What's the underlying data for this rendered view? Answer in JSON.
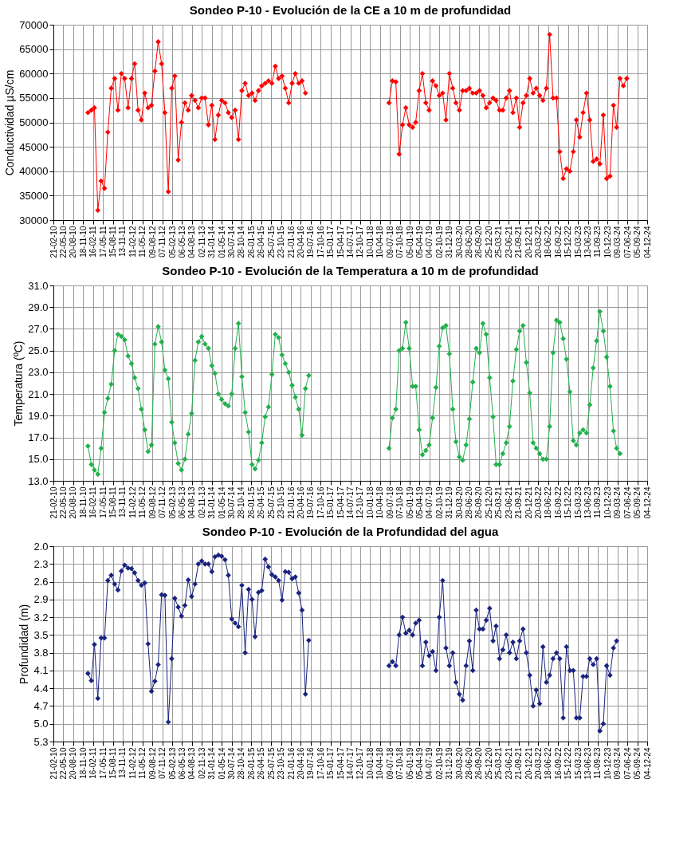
{
  "chart_data": [
    {
      "type": "line",
      "title": "Sondeo P-10 - Evolución de la CE a 10 m de profundidad",
      "ylabel": "Conductividad µS/cm",
      "marker": "diamond",
      "line_style": "solid",
      "grid": true,
      "xlim": [
        "2010-02-21",
        "2024-12-04"
      ],
      "xticks": [
        {
          "value": "2010-02-21",
          "label": "21-02-10"
        },
        {
          "value": "2010-05-22",
          "label": "22-05-10"
        },
        {
          "value": "2010-08-20",
          "label": "20-08-10"
        },
        {
          "value": "2010-11-18",
          "label": "18-11-10"
        },
        {
          "value": "2011-02-16",
          "label": "16-02-11"
        },
        {
          "value": "2011-05-17",
          "label": "17-05-11"
        },
        {
          "value": "2011-08-15",
          "label": "15-08-11"
        },
        {
          "value": "2011-11-13",
          "label": "13-11-11"
        },
        {
          "value": "2012-02-11",
          "label": "11-02-12"
        },
        {
          "value": "2012-05-11",
          "label": "11-05-12"
        },
        {
          "value": "2012-08-09",
          "label": "09-08-12"
        },
        {
          "value": "2012-11-07",
          "label": "07-11-12"
        },
        {
          "value": "2013-02-05",
          "label": "05-02-13"
        },
        {
          "value": "2013-05-06",
          "label": "06-05-13"
        },
        {
          "value": "2013-08-04",
          "label": "04-08-13"
        },
        {
          "value": "2013-11-02",
          "label": "02-11-13"
        },
        {
          "value": "2014-01-31",
          "label": "31-01-14"
        },
        {
          "value": "2014-05-01",
          "label": "01-05-14"
        },
        {
          "value": "2014-07-30",
          "label": "30-07-14"
        },
        {
          "value": "2014-10-28",
          "label": "28-10-14"
        },
        {
          "value": "2015-01-26",
          "label": "26-01-15"
        },
        {
          "value": "2015-04-26",
          "label": "26-04-15"
        },
        {
          "value": "2015-07-25",
          "label": "25-07-15"
        },
        {
          "value": "2015-10-23",
          "label": "23-10-15"
        },
        {
          "value": "2016-01-21",
          "label": "21-01-16"
        },
        {
          "value": "2016-04-20",
          "label": "20-04-16"
        },
        {
          "value": "2016-07-19",
          "label": "19-07-16"
        },
        {
          "value": "2016-10-17",
          "label": "17-10-16"
        },
        {
          "value": "2017-01-15",
          "label": "15-01-17"
        },
        {
          "value": "2017-04-15",
          "label": "15-04-17"
        },
        {
          "value": "2017-07-14",
          "label": "14-07-17"
        },
        {
          "value": "2017-10-12",
          "label": "12-10-17"
        },
        {
          "value": "2018-01-10",
          "label": "10-01-18"
        },
        {
          "value": "2018-04-10",
          "label": "10-04-18"
        },
        {
          "value": "2018-07-09",
          "label": "09-07-18"
        },
        {
          "value": "2018-10-07",
          "label": "07-10-18"
        },
        {
          "value": "2019-01-05",
          "label": "05-01-19"
        },
        {
          "value": "2019-04-05",
          "label": "05-04-19"
        },
        {
          "value": "2019-07-04",
          "label": "04-07-19"
        },
        {
          "value": "2019-10-02",
          "label": "02-10-19"
        },
        {
          "value": "2019-12-31",
          "label": "31-12-19"
        },
        {
          "value": "2020-03-30",
          "label": "30-03-20"
        },
        {
          "value": "2020-06-28",
          "label": "28-06-20"
        },
        {
          "value": "2020-09-26",
          "label": "26-09-20"
        },
        {
          "value": "2020-12-25",
          "label": "25-12-20"
        },
        {
          "value": "2021-03-25",
          "label": "25-03-21"
        },
        {
          "value": "2021-06-23",
          "label": "23-06-21"
        },
        {
          "value": "2021-09-21",
          "label": "21-09-21"
        },
        {
          "value": "2021-12-20",
          "label": "20-12-21"
        },
        {
          "value": "2022-03-20",
          "label": "20-03-22"
        },
        {
          "value": "2022-06-18",
          "label": "18-06-22"
        },
        {
          "value": "2022-09-16",
          "label": "16-09-22"
        },
        {
          "value": "2022-12-15",
          "label": "15-12-22"
        },
        {
          "value": "2023-03-15",
          "label": "15-03-23"
        },
        {
          "value": "2023-06-13",
          "label": "13-06-23"
        },
        {
          "value": "2023-09-11",
          "label": "11-09-23"
        },
        {
          "value": "2023-12-10",
          "label": "10-12-23"
        },
        {
          "value": "2024-03-09",
          "label": "09-03-24"
        },
        {
          "value": "2024-06-07",
          "label": "07-06-24"
        },
        {
          "value": "2024-09-05",
          "label": "05-09-24"
        },
        {
          "value": "2024-12-04",
          "label": "04-12-24"
        }
      ],
      "ylim": [
        30000,
        70000
      ],
      "yticks": [
        30000,
        35000,
        40000,
        45000,
        50000,
        55000,
        60000,
        65000,
        70000
      ],
      "series": [
        {
          "color": "#ff0000",
          "x": [
            "2011-01",
            "2011-02",
            "2011-03",
            "2011-04",
            "2011-05",
            "2011-06",
            "2011-07",
            "2011-08",
            "2011-09",
            "2011-10",
            "2011-11",
            "2011-12",
            "2012-01",
            "2012-02",
            "2012-03",
            "2012-04",
            "2012-05",
            "2012-06",
            "2012-07",
            "2012-08",
            "2012-09",
            "2012-10",
            "2012-11",
            "2012-12",
            "2013-01",
            "2013-02",
            "2013-03",
            "2013-04",
            "2013-05",
            "2013-06",
            "2013-07",
            "2013-08",
            "2013-09",
            "2013-10",
            "2013-11",
            "2013-12",
            "2014-01",
            "2014-02",
            "2014-03",
            "2014-04",
            "2014-05",
            "2014-06",
            "2014-07",
            "2014-08",
            "2014-09",
            "2014-10",
            "2014-11",
            "2014-12",
            "2015-01",
            "2015-02",
            "2015-03",
            "2015-04",
            "2015-05",
            "2015-06",
            "2015-07",
            "2015-08",
            "2015-09",
            "2015-10",
            "2015-11",
            "2015-12",
            "2016-01",
            "2016-02",
            "2016-03",
            "2016-04",
            "2016-05",
            "2016-06"
          ],
          "values": [
            52000,
            52500,
            53000,
            32000,
            38000,
            36500,
            48000,
            57000,
            59000,
            52500,
            60000,
            59000,
            53000,
            59000,
            62000,
            52500,
            50500,
            56000,
            53000,
            53500,
            60500,
            66500,
            62000,
            52000,
            35800,
            57000,
            59500,
            42300,
            50000,
            54000,
            52500,
            55500,
            54500,
            53000,
            55000,
            55000,
            49500,
            53500,
            46500,
            51500,
            54500,
            54000,
            52000,
            51000,
            52500,
            46500,
            56500,
            58000,
            55500,
            56000,
            54500,
            56500,
            57500,
            58000,
            58500,
            58000,
            61500,
            59000,
            59500,
            57000,
            54000,
            58000,
            60000,
            58000,
            58500,
            56000
          ]
        },
        {
          "color": "#ff0000",
          "x": [
            "2018-07",
            "2018-08",
            "2018-09",
            "2018-10",
            "2018-11",
            "2018-12",
            "2019-01",
            "2019-02",
            "2019-03",
            "2019-04",
            "2019-05",
            "2019-06",
            "2019-07",
            "2019-08",
            "2019-09",
            "2019-10",
            "2019-11",
            "2019-12",
            "2020-01",
            "2020-02",
            "2020-03",
            "2020-04",
            "2020-05",
            "2020-06",
            "2020-07",
            "2020-08",
            "2020-09",
            "2020-10",
            "2020-11",
            "2020-12",
            "2021-01",
            "2021-02",
            "2021-03",
            "2021-04",
            "2021-05",
            "2021-06",
            "2021-07",
            "2021-08",
            "2021-09",
            "2021-10",
            "2021-11",
            "2021-12",
            "2022-01",
            "2022-02",
            "2022-03",
            "2022-04",
            "2022-05",
            "2022-06",
            "2022-07",
            "2022-08",
            "2022-09",
            "2022-10",
            "2022-11",
            "2022-12",
            "2023-01",
            "2023-02",
            "2023-03",
            "2023-04",
            "2023-05",
            "2023-06",
            "2023-07",
            "2023-08",
            "2023-09",
            "2023-10",
            "2023-11",
            "2023-12",
            "2024-01",
            "2024-02",
            "2024-03",
            "2024-04",
            "2024-05",
            "2024-06"
          ],
          "values": [
            54000,
            58500,
            58300,
            43500,
            49500,
            53000,
            49500,
            49000,
            50000,
            56500,
            60000,
            54000,
            52500,
            58500,
            57500,
            55500,
            56000,
            50500,
            60000,
            57000,
            54000,
            52500,
            56500,
            56500,
            57000,
            56000,
            56000,
            56500,
            55500,
            53000,
            54000,
            55000,
            54500,
            52500,
            52500,
            55000,
            56500,
            52000,
            55000,
            49000,
            54000,
            55500,
            59000,
            56000,
            57000,
            55500,
            54500,
            57000,
            68000,
            55000,
            55000,
            44000,
            38500,
            40500,
            40000,
            44000,
            50500,
            47000,
            52000,
            56000,
            50500,
            42000,
            42500,
            41500,
            51500,
            38500,
            39000,
            53500,
            49000,
            59000,
            57500,
            59000
          ]
        }
      ]
    },
    {
      "type": "line",
      "title": "Sondeo P-10 - Evolución de la Temperatura a 10 m de profundidad",
      "ylabel": "Temperatura (ºC)",
      "marker": "diamond",
      "line_style": "solid",
      "grid": true,
      "xlim": [
        "2010-02-21",
        "2024-12-04"
      ],
      "xticks": [
        {
          "value": "2010-02-21",
          "label": "21-02-10"
        },
        {
          "value": "2010-05-22",
          "label": "22-05-10"
        },
        {
          "value": "2010-08-20",
          "label": "20-08-10"
        },
        {
          "value": "2010-11-18",
          "label": "18-11-10"
        },
        {
          "value": "2011-02-16",
          "label": "16-02-11"
        },
        {
          "value": "2011-05-17",
          "label": "17-05-11"
        },
        {
          "value": "2011-08-15",
          "label": "15-08-11"
        },
        {
          "value": "2011-11-13",
          "label": "13-11-11"
        },
        {
          "value": "2012-02-11",
          "label": "11-02-12"
        },
        {
          "value": "2012-05-11",
          "label": "11-05-12"
        },
        {
          "value": "2012-08-09",
          "label": "09-08-12"
        },
        {
          "value": "2012-11-07",
          "label": "07-11-12"
        },
        {
          "value": "2013-02-05",
          "label": "05-02-13"
        },
        {
          "value": "2013-05-06",
          "label": "06-05-13"
        },
        {
          "value": "2013-08-04",
          "label": "04-08-13"
        },
        {
          "value": "2013-11-02",
          "label": "02-11-13"
        },
        {
          "value": "2014-01-31",
          "label": "31-01-14"
        },
        {
          "value": "2014-05-01",
          "label": "01-05-14"
        },
        {
          "value": "2014-07-30",
          "label": "30-07-14"
        },
        {
          "value": "2014-10-28",
          "label": "28-10-14"
        },
        {
          "value": "2015-01-26",
          "label": "26-01-15"
        },
        {
          "value": "2015-04-26",
          "label": "26-04-15"
        },
        {
          "value": "2015-07-25",
          "label": "25-07-15"
        },
        {
          "value": "2015-10-23",
          "label": "23-10-15"
        },
        {
          "value": "2016-01-21",
          "label": "21-01-16"
        },
        {
          "value": "2016-04-20",
          "label": "20-04-16"
        },
        {
          "value": "2016-07-19",
          "label": "19-07-16"
        },
        {
          "value": "2016-10-17",
          "label": "17-10-16"
        },
        {
          "value": "2017-01-15",
          "label": "15-01-17"
        },
        {
          "value": "2017-04-15",
          "label": "15-04-17"
        },
        {
          "value": "2017-07-14",
          "label": "14-07-17"
        },
        {
          "value": "2017-10-12",
          "label": "12-10-17"
        },
        {
          "value": "2018-01-10",
          "label": "10-01-18"
        },
        {
          "value": "2018-04-10",
          "label": "10-04-18"
        },
        {
          "value": "2018-07-09",
          "label": "09-07-18"
        },
        {
          "value": "2018-10-07",
          "label": "07-10-18"
        },
        {
          "value": "2019-01-05",
          "label": "05-01-19"
        },
        {
          "value": "2019-04-05",
          "label": "05-04-19"
        },
        {
          "value": "2019-07-04",
          "label": "04-07-19"
        },
        {
          "value": "2019-10-02",
          "label": "02-10-19"
        },
        {
          "value": "2019-12-31",
          "label": "31-12-19"
        },
        {
          "value": "2020-03-30",
          "label": "30-03-20"
        },
        {
          "value": "2020-06-28",
          "label": "28-06-20"
        },
        {
          "value": "2020-09-26",
          "label": "26-09-20"
        },
        {
          "value": "2020-12-25",
          "label": "25-12-20"
        },
        {
          "value": "2021-03-25",
          "label": "25-03-21"
        },
        {
          "value": "2021-06-23",
          "label": "23-06-21"
        },
        {
          "value": "2021-09-21",
          "label": "21-09-21"
        },
        {
          "value": "2021-12-20",
          "label": "20-12-21"
        },
        {
          "value": "2022-03-20",
          "label": "20-03-22"
        },
        {
          "value": "2022-06-18",
          "label": "18-06-22"
        },
        {
          "value": "2022-09-16",
          "label": "16-09-22"
        },
        {
          "value": "2022-12-15",
          "label": "15-12-22"
        },
        {
          "value": "2023-03-15",
          "label": "15-03-23"
        },
        {
          "value": "2023-06-13",
          "label": "13-06-23"
        },
        {
          "value": "2023-09-11",
          "label": "11-09-23"
        },
        {
          "value": "2023-12-10",
          "label": "10-12-23"
        },
        {
          "value": "2024-03-09",
          "label": "09-03-24"
        },
        {
          "value": "2024-06-07",
          "label": "07-06-24"
        },
        {
          "value": "2024-09-05",
          "label": "05-09-24"
        },
        {
          "value": "2024-12-04",
          "label": "04-12-24"
        }
      ],
      "ylim": [
        13,
        31
      ],
      "yticks": [
        {
          "value": 13,
          "label": "13.0"
        },
        {
          "value": 15,
          "label": "15.0"
        },
        {
          "value": 17,
          "label": "17.0"
        },
        {
          "value": 19,
          "label": "19.0"
        },
        {
          "value": 21,
          "label": "21.0"
        },
        {
          "value": 23,
          "label": "23.0"
        },
        {
          "value": 25,
          "label": "25.0"
        },
        {
          "value": 27,
          "label": "27.0"
        },
        {
          "value": 29,
          "label": "29.0"
        },
        {
          "value": 31,
          "label": "31.0"
        }
      ],
      "series": [
        {
          "color": "#22b14c",
          "x": [
            "2011-01",
            "2011-02",
            "2011-03",
            "2011-04",
            "2011-05",
            "2011-06",
            "2011-07",
            "2011-08",
            "2011-09",
            "2011-10",
            "2011-11",
            "2011-12",
            "2012-01",
            "2012-02",
            "2012-03",
            "2012-04",
            "2012-05",
            "2012-06",
            "2012-07",
            "2012-08",
            "2012-09",
            "2012-10",
            "2012-11",
            "2012-12",
            "2013-01",
            "2013-02",
            "2013-03",
            "2013-04",
            "2013-05",
            "2013-06",
            "2013-07",
            "2013-08",
            "2013-09",
            "2013-10",
            "2013-11",
            "2013-12",
            "2014-01",
            "2014-02",
            "2014-03",
            "2014-04",
            "2014-05",
            "2014-06",
            "2014-07",
            "2014-08",
            "2014-09",
            "2014-10",
            "2014-11",
            "2014-12",
            "2015-01",
            "2015-02",
            "2015-03",
            "2015-04",
            "2015-05",
            "2015-06",
            "2015-07",
            "2015-08",
            "2015-09",
            "2015-10",
            "2015-11",
            "2015-12",
            "2016-01",
            "2016-02",
            "2016-03",
            "2016-04",
            "2016-05",
            "2016-06",
            "2016-07"
          ],
          "values": [
            16.2,
            14.5,
            14.0,
            13.6,
            16.0,
            19.3,
            20.6,
            21.9,
            25.0,
            26.5,
            26.3,
            26.0,
            24.5,
            23.8,
            22.5,
            21.5,
            19.6,
            17.7,
            15.7,
            16.3,
            25.6,
            27.2,
            25.8,
            23.2,
            22.4,
            18.4,
            16.5,
            14.6,
            14.0,
            15.0,
            17.3,
            19.2,
            24.1,
            25.8,
            26.3,
            25.6,
            25.2,
            23.6,
            22.9,
            21.0,
            20.5,
            20.1,
            19.9,
            21.0,
            25.2,
            27.5,
            22.6,
            19.3,
            17.5,
            14.5,
            14.1,
            14.9,
            16.5,
            18.9,
            19.8,
            22.8,
            26.5,
            26.2,
            24.6,
            23.8,
            23.0,
            21.8,
            20.7,
            19.6,
            17.2,
            21.5,
            22.7
          ]
        },
        {
          "color": "#22b14c",
          "x": [
            "2018-07",
            "2018-08",
            "2018-09",
            "2018-10",
            "2018-11",
            "2018-12",
            "2019-01",
            "2019-02",
            "2019-03",
            "2019-04",
            "2019-05",
            "2019-06",
            "2019-07",
            "2019-08",
            "2019-09",
            "2019-10",
            "2019-11",
            "2019-12",
            "2020-01",
            "2020-02",
            "2020-03",
            "2020-04",
            "2020-05",
            "2020-06",
            "2020-07",
            "2020-08",
            "2020-09",
            "2020-10",
            "2020-11",
            "2020-12",
            "2021-01",
            "2021-02",
            "2021-03",
            "2021-04",
            "2021-05",
            "2021-06",
            "2021-07",
            "2021-08",
            "2021-09",
            "2021-10",
            "2021-11",
            "2021-12",
            "2022-01",
            "2022-02",
            "2022-03",
            "2022-04",
            "2022-05",
            "2022-06",
            "2022-07",
            "2022-08",
            "2022-09",
            "2022-10",
            "2022-11",
            "2022-12",
            "2023-01",
            "2023-02",
            "2023-03",
            "2023-04",
            "2023-05",
            "2023-06",
            "2023-07",
            "2023-08",
            "2023-09",
            "2023-10",
            "2023-11",
            "2023-12",
            "2024-01",
            "2024-02",
            "2024-03",
            "2024-04"
          ],
          "values": [
            16.0,
            18.8,
            19.6,
            25.0,
            25.2,
            27.6,
            25.2,
            21.7,
            21.7,
            17.7,
            15.4,
            15.8,
            16.3,
            18.8,
            21.6,
            25.4,
            27.1,
            27.3,
            24.7,
            19.6,
            16.6,
            15.2,
            14.9,
            16.3,
            18.7,
            22.1,
            25.2,
            24.8,
            27.5,
            26.5,
            22.5,
            18.9,
            14.5,
            14.5,
            15.5,
            16.5,
            18.0,
            22.2,
            25.1,
            26.8,
            27.3,
            23.9,
            21.1,
            16.5,
            16.0,
            15.5,
            15.0,
            15.0,
            18.0,
            24.8,
            27.8,
            27.6,
            26.1,
            24.2,
            21.2,
            16.7,
            16.3,
            17.4,
            17.7,
            17.4,
            20.0,
            23.4,
            25.9,
            28.6,
            26.8,
            24.4,
            21.7,
            17.6,
            16.0,
            15.5
          ]
        }
      ]
    },
    {
      "type": "line",
      "title": "Sondeo P-10 - Evolución de la Profundidad del agua",
      "ylabel": "Profundidad (m)",
      "marker": "diamond",
      "line_style": "solid",
      "grid": true,
      "xlim": [
        "2010-02-21",
        "2024-12-04"
      ],
      "xticks": [
        {
          "value": "2010-02-21",
          "label": "21-02-10"
        },
        {
          "value": "2010-05-22",
          "label": "22-05-10"
        },
        {
          "value": "2010-08-20",
          "label": "20-08-10"
        },
        {
          "value": "2010-11-18",
          "label": "18-11-10"
        },
        {
          "value": "2011-02-16",
          "label": "16-02-11"
        },
        {
          "value": "2011-05-17",
          "label": "17-05-11"
        },
        {
          "value": "2011-08-15",
          "label": "15-08-11"
        },
        {
          "value": "2011-11-13",
          "label": "13-11-11"
        },
        {
          "value": "2012-02-11",
          "label": "11-02-12"
        },
        {
          "value": "2012-05-11",
          "label": "11-05-12"
        },
        {
          "value": "2012-08-09",
          "label": "09-08-12"
        },
        {
          "value": "2012-11-07",
          "label": "07-11-12"
        },
        {
          "value": "2013-02-05",
          "label": "05-02-13"
        },
        {
          "value": "2013-05-06",
          "label": "06-05-13"
        },
        {
          "value": "2013-08-04",
          "label": "04-08-13"
        },
        {
          "value": "2013-11-02",
          "label": "02-11-13"
        },
        {
          "value": "2014-01-31",
          "label": "31-01-14"
        },
        {
          "value": "2014-05-01",
          "label": "01-05-14"
        },
        {
          "value": "2014-07-30",
          "label": "30-07-14"
        },
        {
          "value": "2014-10-28",
          "label": "28-10-14"
        },
        {
          "value": "2015-01-26",
          "label": "26-01-15"
        },
        {
          "value": "2015-04-26",
          "label": "26-04-15"
        },
        {
          "value": "2015-07-25",
          "label": "25-07-15"
        },
        {
          "value": "2015-10-23",
          "label": "23-10-15"
        },
        {
          "value": "2016-01-21",
          "label": "21-01-16"
        },
        {
          "value": "2016-04-20",
          "label": "20-04-16"
        },
        {
          "value": "2016-07-19",
          "label": "19-07-16"
        },
        {
          "value": "2016-10-17",
          "label": "17-10-16"
        },
        {
          "value": "2017-01-15",
          "label": "15-01-17"
        },
        {
          "value": "2017-04-15",
          "label": "15-04-17"
        },
        {
          "value": "2017-07-14",
          "label": "14-07-17"
        },
        {
          "value": "2017-10-12",
          "label": "12-10-17"
        },
        {
          "value": "2018-01-10",
          "label": "10-01-18"
        },
        {
          "value": "2018-04-10",
          "label": "10-04-18"
        },
        {
          "value": "2018-07-09",
          "label": "09-07-18"
        },
        {
          "value": "2018-10-07",
          "label": "07-10-18"
        },
        {
          "value": "2019-01-05",
          "label": "05-01-19"
        },
        {
          "value": "2019-04-05",
          "label": "05-04-19"
        },
        {
          "value": "2019-07-04",
          "label": "04-07-19"
        },
        {
          "value": "2019-10-02",
          "label": "02-10-19"
        },
        {
          "value": "2019-12-31",
          "label": "31-12-19"
        },
        {
          "value": "2020-03-30",
          "label": "30-03-20"
        },
        {
          "value": "2020-06-28",
          "label": "28-06-20"
        },
        {
          "value": "2020-09-26",
          "label": "26-09-20"
        },
        {
          "value": "2020-12-25",
          "label": "25-12-20"
        },
        {
          "value": "2021-03-25",
          "label": "25-03-21"
        },
        {
          "value": "2021-06-23",
          "label": "23-06-21"
        },
        {
          "value": "2021-09-21",
          "label": "21-09-21"
        },
        {
          "value": "2021-12-20",
          "label": "20-12-21"
        },
        {
          "value": "2022-03-20",
          "label": "20-03-22"
        },
        {
          "value": "2022-06-18",
          "label": "18-06-22"
        },
        {
          "value": "2022-09-16",
          "label": "16-09-22"
        },
        {
          "value": "2022-12-15",
          "label": "15-12-22"
        },
        {
          "value": "2023-03-15",
          "label": "15-03-23"
        },
        {
          "value": "2023-06-13",
          "label": "13-06-23"
        },
        {
          "value": "2023-09-11",
          "label": "11-09-23"
        },
        {
          "value": "2023-12-10",
          "label": "10-12-23"
        },
        {
          "value": "2024-03-09",
          "label": "09-03-24"
        },
        {
          "value": "2024-06-07",
          "label": "07-06-24"
        },
        {
          "value": "2024-09-05",
          "label": "05-09-24"
        },
        {
          "value": "2024-12-04",
          "label": "04-12-24"
        }
      ],
      "ylim": [
        5.3,
        2.0
      ],
      "yticks": [
        {
          "value": 2.0,
          "label": "2.0"
        },
        2.3,
        2.6,
        2.9,
        3.2,
        3.5,
        3.8,
        4.1,
        4.4,
        4.7,
        {
          "value": 5.0,
          "label": "5.0"
        },
        5.3
      ],
      "series": [
        {
          "color": "#1a237e",
          "x": [
            "2011-01",
            "2011-02",
            "2011-03",
            "2011-04",
            "2011-05",
            "2011-06",
            "2011-07",
            "2011-08",
            "2011-09",
            "2011-10",
            "2011-11",
            "2011-12",
            "2012-01",
            "2012-02",
            "2012-03",
            "2012-04",
            "2012-05",
            "2012-06",
            "2012-07",
            "2012-08",
            "2012-09",
            "2012-10",
            "2012-11",
            "2012-12",
            "2013-01",
            "2013-02",
            "2013-03",
            "2013-04",
            "2013-05",
            "2013-06",
            "2013-07",
            "2013-08",
            "2013-09",
            "2013-10",
            "2013-11",
            "2013-12",
            "2014-01",
            "2014-02",
            "2014-03",
            "2014-04",
            "2014-05",
            "2014-06",
            "2014-07",
            "2014-08",
            "2014-09",
            "2014-10",
            "2014-11",
            "2014-12",
            "2015-01",
            "2015-02",
            "2015-03",
            "2015-04",
            "2015-05",
            "2015-06",
            "2015-07",
            "2015-08",
            "2015-09",
            "2015-10",
            "2015-11",
            "2015-12",
            "2016-01",
            "2016-02",
            "2016-03",
            "2016-04",
            "2016-05",
            "2016-06",
            "2016-07"
          ],
          "values": [
            4.15,
            4.27,
            3.66,
            4.57,
            3.55,
            3.55,
            2.58,
            2.49,
            2.64,
            2.74,
            2.42,
            2.32,
            2.37,
            2.38,
            2.45,
            2.58,
            2.66,
            2.62,
            3.65,
            4.45,
            4.28,
            4.0,
            2.82,
            2.83,
            4.97,
            3.9,
            2.88,
            3.03,
            3.18,
            3.0,
            2.57,
            2.85,
            2.64,
            2.3,
            2.25,
            2.3,
            2.3,
            2.43,
            2.18,
            2.15,
            2.17,
            2.23,
            2.49,
            3.23,
            3.3,
            3.36,
            2.66,
            3.8,
            2.73,
            2.9,
            3.53,
            2.78,
            2.75,
            2.22,
            2.35,
            2.48,
            2.52,
            2.58,
            2.91,
            2.43,
            2.44,
            2.55,
            2.52,
            2.79,
            3.08,
            4.5,
            3.59
          ]
        },
        {
          "color": "#1a237e",
          "x": [
            "2018-07",
            "2018-08",
            "2018-09",
            "2018-10",
            "2018-11",
            "2018-12",
            "2019-01",
            "2019-02",
            "2019-03",
            "2019-04",
            "2019-05",
            "2019-06",
            "2019-07",
            "2019-08",
            "2019-09",
            "2019-10",
            "2019-11",
            "2019-12",
            "2020-01",
            "2020-02",
            "2020-03",
            "2020-04",
            "2020-05",
            "2020-06",
            "2020-07",
            "2020-08",
            "2020-09",
            "2020-10",
            "2020-11",
            "2020-12",
            "2021-01",
            "2021-02",
            "2021-03",
            "2021-04",
            "2021-05",
            "2021-06",
            "2021-07",
            "2021-08",
            "2021-09",
            "2021-10",
            "2021-11",
            "2021-12",
            "2022-01",
            "2022-02",
            "2022-03",
            "2022-04",
            "2022-05",
            "2022-06",
            "2022-07",
            "2022-08",
            "2022-09",
            "2022-10",
            "2022-11",
            "2022-12",
            "2023-01",
            "2023-02",
            "2023-03",
            "2023-04",
            "2023-05",
            "2023-06",
            "2023-07",
            "2023-08",
            "2023-09",
            "2023-10",
            "2023-11",
            "2023-12",
            "2024-01",
            "2024-02",
            "2024-03"
          ],
          "values": [
            4.02,
            3.95,
            4.02,
            3.5,
            3.2,
            3.47,
            3.42,
            3.5,
            3.3,
            3.25,
            4.02,
            3.62,
            3.85,
            3.78,
            4.1,
            3.2,
            2.58,
            3.72,
            4.02,
            3.8,
            4.3,
            4.5,
            4.6,
            4.02,
            3.6,
            4.1,
            3.08,
            3.4,
            3.4,
            3.25,
            3.05,
            3.6,
            3.35,
            3.9,
            3.75,
            3.5,
            3.8,
            3.62,
            3.9,
            3.6,
            3.4,
            3.8,
            4.18,
            4.7,
            4.43,
            4.66,
            3.7,
            4.3,
            4.18,
            3.9,
            3.8,
            3.9,
            4.9,
            3.7,
            4.1,
            4.1,
            4.9,
            4.9,
            4.2,
            4.2,
            3.9,
            4.0,
            3.9,
            5.12,
            5.0,
            4.02,
            4.18,
            3.72,
            3.6
          ]
        }
      ]
    }
  ]
}
